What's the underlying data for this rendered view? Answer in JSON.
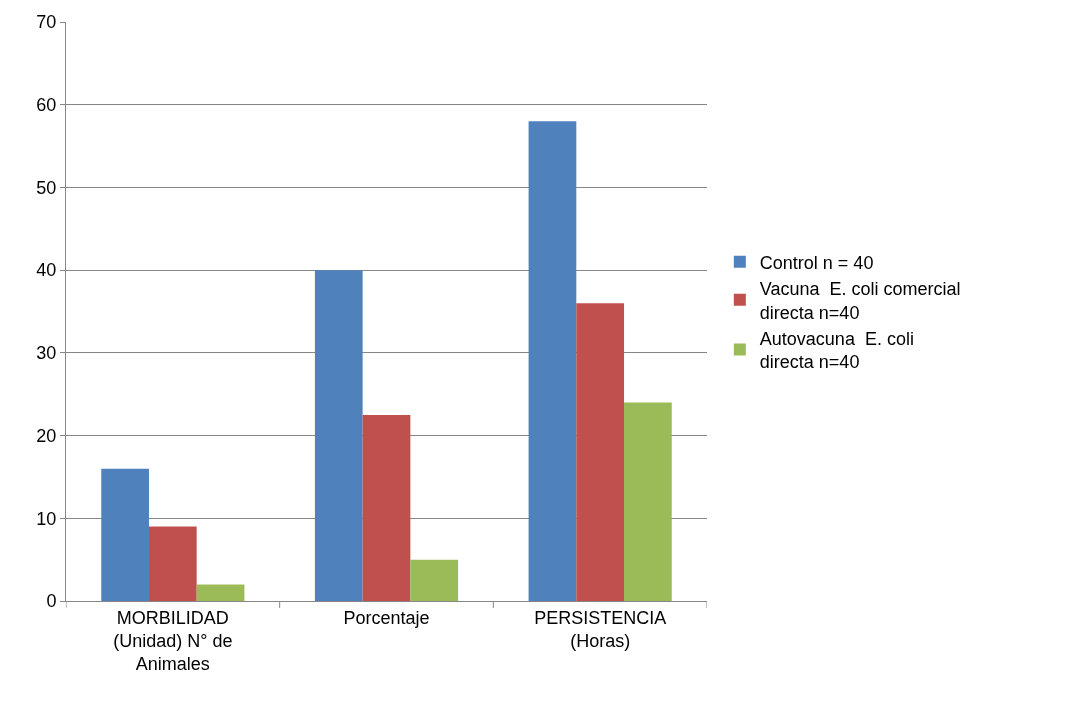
{
  "chart_data": {
    "type": "bar",
    "categories": [
      "MORBILIDAD (Unidad) N° de Animales",
      "Porcentaje",
      "PERSISTENCIA (Horas)"
    ],
    "series": [
      {
        "name": "Control n = 40",
        "color": "#4f81bd",
        "values": [
          16,
          40,
          58
        ]
      },
      {
        "name": "Vacuna  E. coli comercial directa n=40",
        "color": "#c0504d",
        "values": [
          9,
          22.5,
          36
        ]
      },
      {
        "name": "Autovacuna  E. coli directa n=40",
        "color": "#9bbb59",
        "values": [
          2,
          5,
          24
        ]
      }
    ],
    "ylim": [
      0,
      70
    ],
    "yticks": [
      0,
      10,
      20,
      30,
      40,
      50,
      60,
      70
    ],
    "grid": "y",
    "legend": "right"
  }
}
